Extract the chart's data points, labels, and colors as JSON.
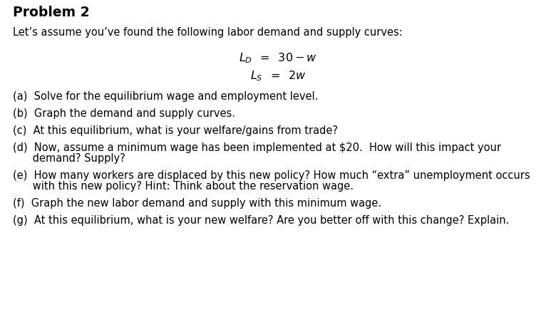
{
  "title": "Problem 2",
  "intro": "Let’s assume you’ve found the following labor demand and supply curves:",
  "bg_color": "#ffffff",
  "text_color": "#000000",
  "title_fontsize": 13.5,
  "body_fontsize": 10.5,
  "parts": {
    "a": "(a)  Solve for the equilibrium wage and employment level.",
    "b": "(b)  Graph the demand and supply curves.",
    "c": "(c)  At this equilibrium, what is your welfare/gains from trade?",
    "d1": "(d)  Now, assume a minimum wage has been implemented at $20.  How will this impact your",
    "d2": "      demand? Supply?",
    "e1": "(e)  How many workers are displaced by this new policy? How much “extra” unemployment occurs",
    "e2": "      with this new policy? Hint: Think about the reservation wage.",
    "f": "(f)  Graph the new labor demand and supply with this minimum wage.",
    "g": "(g)  At this equilibrium, what is your new welfare? Are you better off with this change? Explain."
  }
}
